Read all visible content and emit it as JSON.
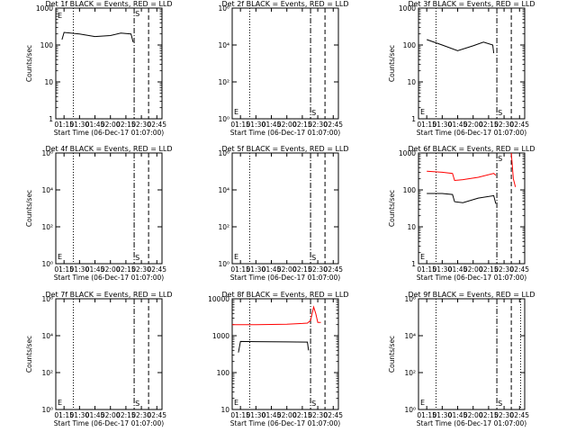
{
  "figure": {
    "xlabel": "Start Time (06-Dec-17 01:07:00)",
    "ylabel": "Counts/sec",
    "x_tick_labels": [
      "01:15",
      "01:30",
      "01:45",
      "02:00",
      "02:15",
      "02:30",
      "02:45"
    ],
    "colors": {
      "events": "#000000",
      "lld": "#ff0000",
      "axes": "#000000",
      "background": "#ffffff"
    }
  },
  "chart_data": [
    {
      "type": "line",
      "title": "Det 1f BLACK = Events, RED = LLD",
      "xlabel": "Start Time (06-Dec-17 01:07:00)",
      "ylabel": "Counts/sec",
      "xlim": [
        "01:07",
        "02:50"
      ],
      "ylim": [
        1,
        1000
      ],
      "yscale": "log",
      "y_tick_labels": [
        "1",
        "10",
        "100",
        "1000"
      ],
      "series": [
        {
          "color": "#000000",
          "x": [
            "01:13",
            "01:15",
            "01:30",
            "01:45",
            "02:00",
            "02:10",
            "02:20",
            "02:22"
          ],
          "y": [
            140,
            220,
            200,
            170,
            180,
            210,
            200,
            120
          ]
        }
      ],
      "markers": {
        "E_label": "E",
        "S_label": "S"
      },
      "vlines": [
        {
          "x": "01:24",
          "style": "dotted"
        },
        {
          "x": "02:23",
          "style": "dash-dot"
        },
        {
          "x": "02:37",
          "style": "dashed"
        }
      ]
    },
    {
      "type": "line",
      "title": "Det 2f BLACK = Events, RED = LLD",
      "xlabel": "Start Time (06-Dec-17 01:07:00)",
      "ylabel": "",
      "xlim": [
        "01:07",
        "02:50"
      ],
      "ylim": [
        1,
        1000000
      ],
      "yscale": "log",
      "y_tick_labels": [
        "10⁰",
        "10²",
        "10⁴",
        "10⁶"
      ],
      "series": [],
      "markers": {
        "E_label": "E",
        "S_label": "S"
      },
      "vlines": [
        {
          "x": "01:24",
          "style": "dotted"
        },
        {
          "x": "02:23",
          "style": "dash-dot"
        },
        {
          "x": "02:37",
          "style": "dashed"
        }
      ]
    },
    {
      "type": "line",
      "title": "Det 3f BLACK = Events, RED = LLD",
      "xlabel": "Start Time (06-Dec-17 01:07:00)",
      "ylabel": "Counts/sec",
      "xlim": [
        "01:07",
        "02:50"
      ],
      "ylim": [
        1,
        1000
      ],
      "yscale": "log",
      "y_tick_labels": [
        "1",
        "10",
        "100",
        "1000"
      ],
      "series": [
        {
          "color": "#000000",
          "x": [
            "01:15",
            "01:30",
            "01:45",
            "02:00",
            "02:10",
            "02:19",
            "02:20"
          ],
          "y": [
            140,
            100,
            70,
            95,
            120,
            100,
            60
          ]
        }
      ],
      "markers": {
        "E_label": "E",
        "S_label": "S"
      },
      "vlines": [
        {
          "x": "01:24",
          "style": "dotted"
        },
        {
          "x": "02:23",
          "style": "dash-dot"
        },
        {
          "x": "02:37",
          "style": "dashed"
        }
      ]
    },
    {
      "type": "line",
      "title": "Det 4f BLACK = Events, RED = LLD",
      "xlabel": "Start Time (06-Dec-17 01:07:00)",
      "ylabel": "Counts/sec",
      "xlim": [
        "01:07",
        "02:50"
      ],
      "ylim": [
        1,
        1000000
      ],
      "yscale": "log",
      "y_tick_labels": [
        "10⁰",
        "10²",
        "10⁴",
        "10⁶"
      ],
      "series": [],
      "markers": {
        "E_label": "E",
        "S_label": "S"
      },
      "vlines": [
        {
          "x": "01:24",
          "style": "dotted"
        },
        {
          "x": "02:23",
          "style": "dash-dot"
        },
        {
          "x": "02:37",
          "style": "dashed"
        }
      ]
    },
    {
      "type": "line",
      "title": "Det 5f BLACK = Events, RED = LLD",
      "xlabel": "Start Time (06-Dec-17 01:07:00)",
      "ylabel": "",
      "xlim": [
        "01:07",
        "02:50"
      ],
      "ylim": [
        1,
        1000000
      ],
      "yscale": "log",
      "y_tick_labels": [
        "10⁰",
        "10²",
        "10⁴",
        "10⁶"
      ],
      "series": [],
      "markers": {
        "E_label": "E",
        "S_label": "S"
      },
      "vlines": [
        {
          "x": "01:24",
          "style": "dotted"
        },
        {
          "x": "02:23",
          "style": "dash-dot"
        },
        {
          "x": "02:37",
          "style": "dashed"
        }
      ]
    },
    {
      "type": "line",
      "title": "Det 6f BLACK = Events, RED = LLD",
      "xlabel": "Start Time (06-Dec-17 01:07:00)",
      "ylabel": "Counts/sec",
      "xlim": [
        "01:07",
        "02:50"
      ],
      "ylim": [
        1,
        1000
      ],
      "yscale": "log",
      "y_tick_labels": [
        "1",
        "10",
        "100",
        "1000"
      ],
      "series": [
        {
          "color": "#ff0000",
          "x": [
            "01:15",
            "01:30",
            "01:40",
            "01:42",
            "01:50",
            "02:05",
            "02:20",
            "02:22"
          ],
          "y": [
            320,
            300,
            280,
            180,
            190,
            220,
            280,
            250
          ]
        },
        {
          "color": "#ff0000",
          "x": [
            "02:37",
            "02:39",
            "02:41"
          ],
          "y": [
            1000,
            200,
            120
          ]
        },
        {
          "color": "#000000",
          "x": [
            "01:15",
            "01:30",
            "01:40",
            "01:42",
            "01:50",
            "02:05",
            "02:20",
            "02:22"
          ],
          "y": [
            80,
            80,
            75,
            48,
            45,
            60,
            70,
            42
          ]
        }
      ],
      "markers": {
        "E_label": "E",
        "S_label": "S"
      },
      "vlines": [
        {
          "x": "01:24",
          "style": "dotted"
        },
        {
          "x": "02:23",
          "style": "dash-dot"
        },
        {
          "x": "02:37",
          "style": "dashed"
        }
      ]
    },
    {
      "type": "line",
      "title": "Det 7f BLACK = Events, RED = LLD",
      "xlabel": "Start Time (06-Dec-17 01:07:00)",
      "ylabel": "Counts/sec",
      "xlim": [
        "01:07",
        "02:50"
      ],
      "ylim": [
        1,
        1000000
      ],
      "yscale": "log",
      "y_tick_labels": [
        "10⁰",
        "10²",
        "10⁴",
        "10⁶"
      ],
      "series": [],
      "markers": {
        "E_label": "E",
        "S_label": "S"
      },
      "vlines": [
        {
          "x": "01:24",
          "style": "dotted"
        },
        {
          "x": "02:23",
          "style": "dash-dot"
        },
        {
          "x": "02:37",
          "style": "dashed"
        }
      ]
    },
    {
      "type": "line",
      "title": "Det 8f BLACK = Events, RED = LLD",
      "xlabel": "Start Time (06-Dec-17 01:07:00)",
      "ylabel": "",
      "xlim": [
        "01:07",
        "02:50"
      ],
      "ylim": [
        10,
        10000
      ],
      "yscale": "log",
      "y_tick_labels": [
        "10",
        "100",
        "1000",
        "10000"
      ],
      "series": [
        {
          "color": "#ff0000",
          "x": [
            "01:07",
            "01:30",
            "02:00",
            "02:15",
            "02:20",
            "02:23",
            "02:26",
            "02:28",
            "02:30",
            "02:33"
          ],
          "y": [
            2000,
            2000,
            2050,
            2150,
            2200,
            2600,
            6000,
            4000,
            2300,
            2300
          ]
        },
        {
          "color": "#000000",
          "x": [
            "01:13",
            "01:15",
            "01:30",
            "02:00",
            "02:20",
            "02:21"
          ],
          "y": [
            350,
            700,
            690,
            680,
            670,
            400
          ]
        }
      ],
      "markers": {
        "E_label": "E",
        "S_label": "S"
      },
      "vlines": [
        {
          "x": "01:24",
          "style": "dotted"
        },
        {
          "x": "02:23",
          "style": "dash-dot"
        },
        {
          "x": "02:37",
          "style": "dashed"
        }
      ]
    },
    {
      "type": "line",
      "title": "Det 9f BLACK = Events, RED = LLD",
      "xlabel": "Start Time (06-Dec-17 01:07:00)",
      "ylabel": "Counts/sec",
      "xlim": [
        "01:07",
        "02:50"
      ],
      "ylim": [
        1,
        1000000
      ],
      "yscale": "log",
      "y_tick_labels": [
        "10⁰",
        "10²",
        "10⁴",
        "10⁶"
      ],
      "series": [],
      "markers": {
        "E_label": "E",
        "S_label": "S"
      },
      "vlines": [
        {
          "x": "01:24",
          "style": "dotted"
        },
        {
          "x": "02:23",
          "style": "dash-dot"
        },
        {
          "x": "02:37",
          "style": "dashed"
        },
        {
          "x": "02:46",
          "style": "dotted"
        }
      ]
    }
  ]
}
